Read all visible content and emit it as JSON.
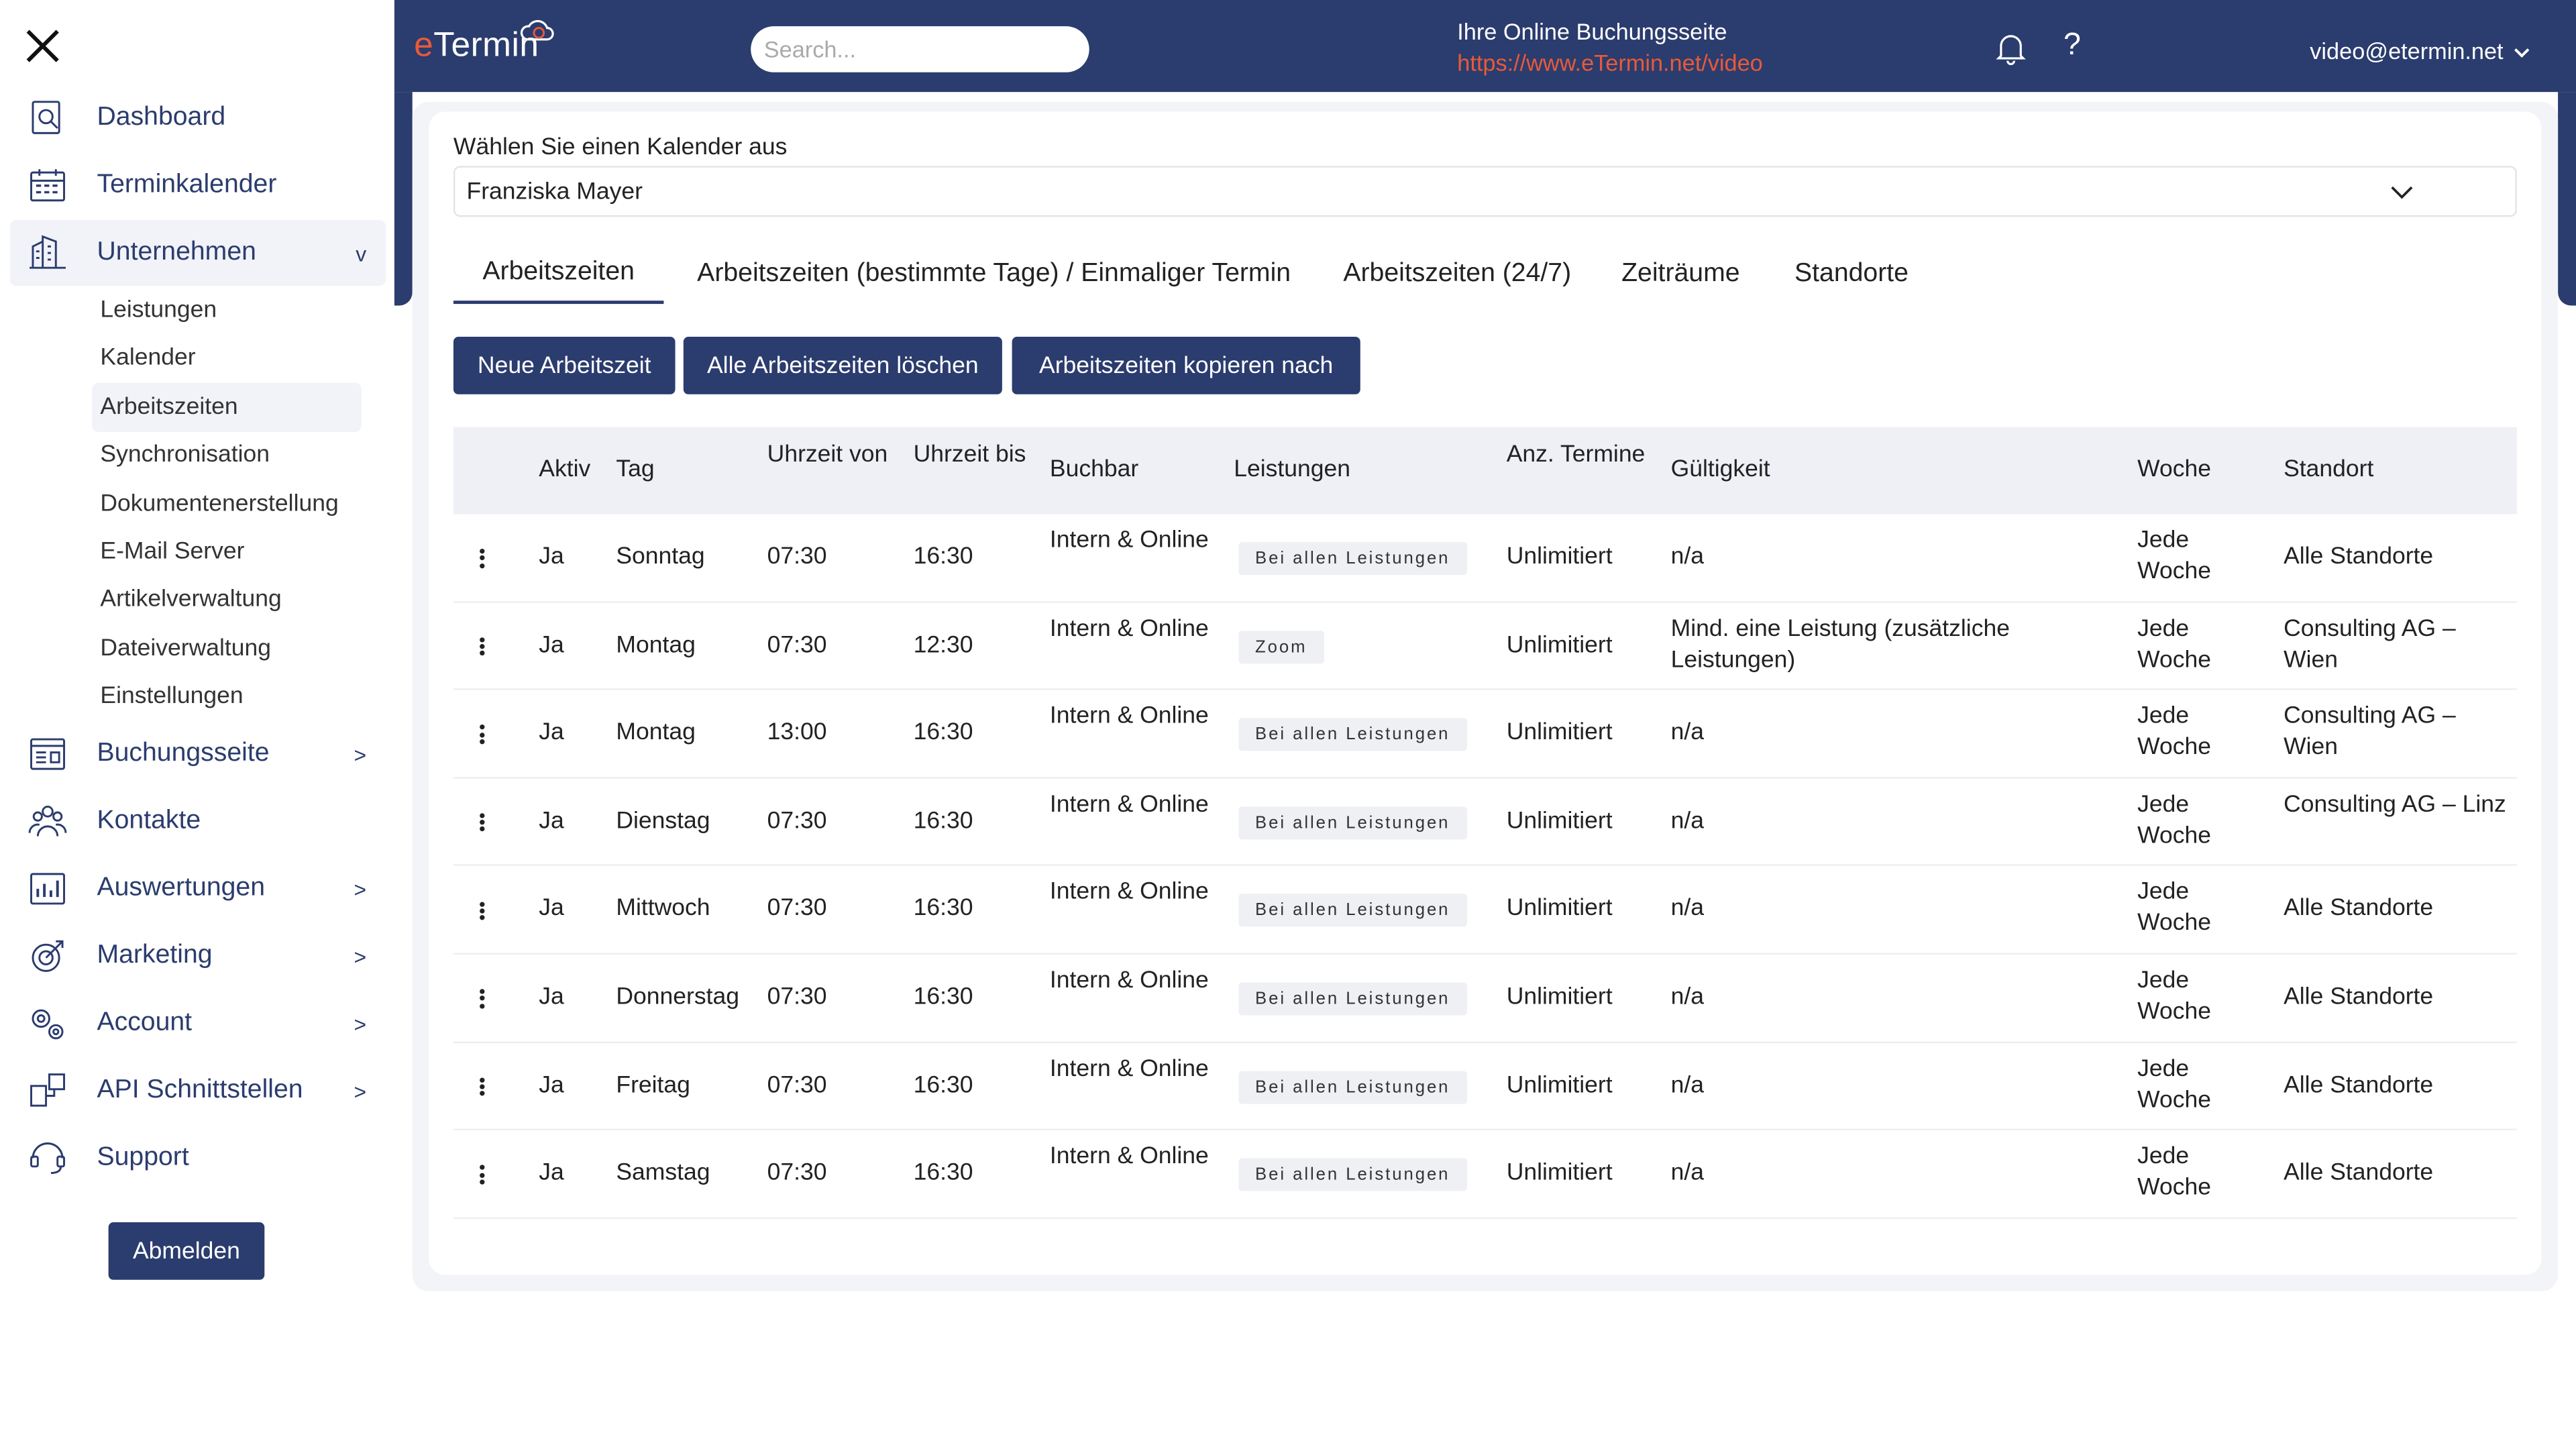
{
  "sidebar": {
    "items": [
      {
        "label": "Dashboard",
        "icon": "dashboard-icon",
        "chevron": ""
      },
      {
        "label": "Terminkalender",
        "icon": "calendar-icon",
        "chevron": ""
      },
      {
        "label": "Unternehmen",
        "icon": "company-icon",
        "chevron": "v"
      },
      {
        "label": "Buchungsseite",
        "icon": "booking-page-icon",
        "chevron": ">"
      },
      {
        "label": "Kontakte",
        "icon": "contacts-icon",
        "chevron": ""
      },
      {
        "label": "Auswertungen",
        "icon": "reports-icon",
        "chevron": ">"
      },
      {
        "label": "Marketing",
        "icon": "marketing-icon",
        "chevron": ">"
      },
      {
        "label": "Account",
        "icon": "account-icon",
        "chevron": ">"
      },
      {
        "label": "API Schnittstellen",
        "icon": "api-icon",
        "chevron": ">"
      },
      {
        "label": "Support",
        "icon": "support-icon",
        "chevron": ""
      }
    ],
    "subitems": [
      "Leistungen",
      "Kalender",
      "Arbeitszeiten",
      "Synchronisation",
      "Dokumentenerstellung",
      "E-Mail Server",
      "Artikelverwaltung",
      "Dateiverwaltung",
      "Einstellungen"
    ],
    "logout_label": "Abmelden"
  },
  "header": {
    "logo_e": "e",
    "logo_rest": "Termin",
    "search_placeholder": "Search...",
    "booking_title": "Ihre Online Buchungsseite",
    "booking_link": "https://www.eTermin.net/video",
    "help": "?",
    "user": "video@etermin.net"
  },
  "main": {
    "calendar_label": "Wählen Sie einen Kalender aus",
    "calendar_value": "Franziska Mayer",
    "tabs": [
      "Arbeitszeiten",
      "Arbeitszeiten (bestimmte Tage) / Einmaliger Termin",
      "Arbeitszeiten (24/7)",
      "Zeiträume",
      "Standorte"
    ],
    "buttons": [
      "Neue Arbeitszeit",
      "Alle Arbeitszeiten löschen",
      "Arbeitszeiten kopieren nach"
    ],
    "columns": [
      "Aktiv",
      "Tag",
      "Uhrzeit von",
      "Uhrzeit bis",
      "Buchbar",
      "Leistungen",
      "Anz. Termine",
      "Gültigkeit",
      "Woche",
      "Standort"
    ],
    "rows": [
      {
        "aktiv": "Ja",
        "tag": "Sonntag",
        "von": "07:30",
        "bis": "16:30",
        "buchbar": "Intern & Online",
        "leistungen": "Bei allen Leistungen",
        "anz": "Unlimitiert",
        "gueltigkeit": "n/a",
        "woche": "Jede Woche",
        "standort": "Alle Standorte"
      },
      {
        "aktiv": "Ja",
        "tag": "Montag",
        "von": "07:30",
        "bis": "12:30",
        "buchbar": "Intern & Online",
        "leistungen": "Zoom",
        "anz": "Unlimitiert",
        "gueltigkeit": "Mind. eine Leistung (zusätzliche Leistungen)",
        "woche": "Jede Woche",
        "standort": "Consulting AG – Wien"
      },
      {
        "aktiv": "Ja",
        "tag": "Montag",
        "von": "13:00",
        "bis": "16:30",
        "buchbar": "Intern & Online",
        "leistungen": "Bei allen Leistungen",
        "anz": "Unlimitiert",
        "gueltigkeit": "n/a",
        "woche": "Jede Woche",
        "standort": "Consulting AG – Wien"
      },
      {
        "aktiv": "Ja",
        "tag": "Dienstag",
        "von": "07:30",
        "bis": "16:30",
        "buchbar": "Intern & Online",
        "leistungen": "Bei allen Leistungen",
        "anz": "Unlimitiert",
        "gueltigkeit": "n/a",
        "woche": "Jede Woche",
        "standort": "Consulting AG – Linz"
      },
      {
        "aktiv": "Ja",
        "tag": "Mittwoch",
        "von": "07:30",
        "bis": "16:30",
        "buchbar": "Intern & Online",
        "leistungen": "Bei allen Leistungen",
        "anz": "Unlimitiert",
        "gueltigkeit": "n/a",
        "woche": "Jede Woche",
        "standort": "Alle Standorte"
      },
      {
        "aktiv": "Ja",
        "tag": "Donnerstag",
        "von": "07:30",
        "bis": "16:30",
        "buchbar": "Intern & Online",
        "leistungen": "Bei allen Leistungen",
        "anz": "Unlimitiert",
        "gueltigkeit": "n/a",
        "woche": "Jede Woche",
        "standort": "Alle Standorte"
      },
      {
        "aktiv": "Ja",
        "tag": "Freitag",
        "von": "07:30",
        "bis": "16:30",
        "buchbar": "Intern & Online",
        "leistungen": "Bei allen Leistungen",
        "anz": "Unlimitiert",
        "gueltigkeit": "n/a",
        "woche": "Jede Woche",
        "standort": "Alle Standorte"
      },
      {
        "aktiv": "Ja",
        "tag": "Samstag",
        "von": "07:30",
        "bis": "16:30",
        "buchbar": "Intern & Online",
        "leistungen": "Bei allen Leistungen",
        "anz": "Unlimitiert",
        "gueltigkeit": "n/a",
        "woche": "Jede Woche",
        "standort": "Alle Standorte"
      }
    ]
  },
  "colors": {
    "brand": "#2b3c6e",
    "accent": "#e85a3a"
  }
}
